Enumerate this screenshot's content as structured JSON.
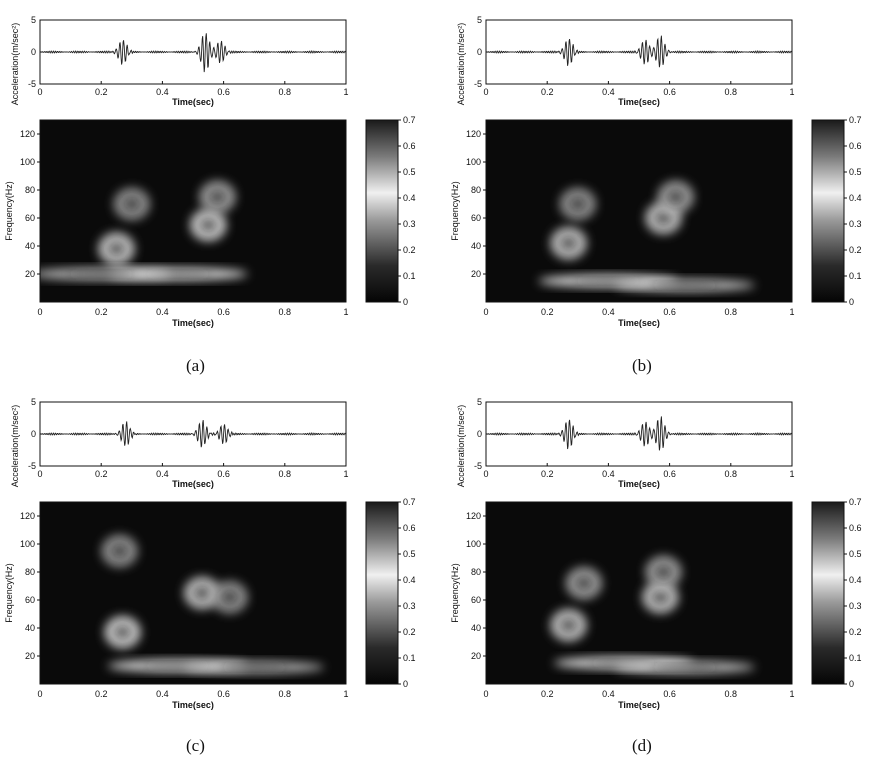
{
  "chart_data": [
    {
      "panel": "(a)",
      "type": "heatmap",
      "top": {
        "type": "line",
        "xlabel": "Time(sec)",
        "ylabel": "Acceleration(m/sec²)",
        "xlim": [
          0,
          1
        ],
        "ylim": [
          -5,
          5
        ],
        "xticks": [
          "0",
          "0.2",
          "0.4",
          "0.6",
          "0.8",
          "1"
        ],
        "yticks": [
          "-5",
          "0",
          "5"
        ],
        "bursts": [
          {
            "t": 0.27,
            "amp": 2.0
          },
          {
            "t": 0.54,
            "amp": 3.2
          },
          {
            "t": 0.59,
            "amp": 1.8
          }
        ]
      },
      "main": {
        "xlabel": "Time(sec)",
        "ylabel": "Frequency(Hz)",
        "xlim": [
          0,
          1
        ],
        "ylim": [
          0,
          130
        ],
        "xticks": [
          "0",
          "0.2",
          "0.4",
          "0.6",
          "0.8",
          "1"
        ],
        "yticks": [
          "20",
          "40",
          "60",
          "80",
          "100",
          "120"
        ],
        "blobs": [
          {
            "t": 0.25,
            "f": 38,
            "level": 0.62
          },
          {
            "t": 0.3,
            "f": 70,
            "level": 0.4
          },
          {
            "t": 0.55,
            "f": 55,
            "level": 0.65
          },
          {
            "t": 0.58,
            "f": 75,
            "level": 0.45
          },
          {
            "t": 0.45,
            "f": 20,
            "level": 0.7
          },
          {
            "t": 0.2,
            "f": 20,
            "level": 0.55
          }
        ]
      },
      "colorbar": {
        "range": [
          0,
          0.7
        ],
        "ticks": [
          "0",
          "0.1",
          "0.2",
          "0.3",
          "0.4",
          "0.5",
          "0.6",
          "0.7"
        ]
      }
    },
    {
      "panel": "(b)",
      "type": "heatmap",
      "top": {
        "type": "line",
        "xlabel": "Time(sec)",
        "ylabel": "Acceleration(m/sec²)",
        "xlim": [
          0,
          1
        ],
        "ylim": [
          -5,
          5
        ],
        "xticks": [
          "0",
          "0.2",
          "0.4",
          "0.6",
          "0.8",
          "1"
        ],
        "yticks": [
          "-5",
          "0",
          "5"
        ],
        "bursts": [
          {
            "t": 0.27,
            "amp": 2.2
          },
          {
            "t": 0.52,
            "amp": 2.0
          },
          {
            "t": 0.57,
            "amp": 2.6
          }
        ]
      },
      "main": {
        "xlabel": "Time(sec)",
        "ylabel": "Frequency(Hz)",
        "xlim": [
          0,
          1
        ],
        "ylim": [
          0,
          130
        ],
        "xticks": [
          "0",
          "0.2",
          "0.4",
          "0.6",
          "0.8",
          "1"
        ],
        "yticks": [
          "20",
          "40",
          "60",
          "80",
          "100",
          "120"
        ],
        "blobs": [
          {
            "t": 0.27,
            "f": 42,
            "level": 0.6
          },
          {
            "t": 0.3,
            "f": 70,
            "level": 0.4
          },
          {
            "t": 0.58,
            "f": 60,
            "level": 0.6
          },
          {
            "t": 0.62,
            "f": 75,
            "level": 0.45
          },
          {
            "t": 0.4,
            "f": 15,
            "level": 0.7
          },
          {
            "t": 0.65,
            "f": 12,
            "level": 0.55
          }
        ]
      },
      "colorbar": {
        "range": [
          0,
          0.7
        ],
        "ticks": [
          "0",
          "0.1",
          "0.2",
          "0.3",
          "0.4",
          "0.5",
          "0.6",
          "0.7"
        ]
      }
    },
    {
      "panel": "(c)",
      "type": "heatmap",
      "top": {
        "type": "line",
        "xlabel": "Time(sec)",
        "ylabel": "Acceleration(m/sec²)",
        "xlim": [
          0,
          1
        ],
        "ylim": [
          -5,
          5
        ],
        "xticks": [
          "0",
          "0.2",
          "0.4",
          "0.6",
          "0.8",
          "1"
        ],
        "yticks": [
          "-5",
          "0",
          "5"
        ],
        "bursts": [
          {
            "t": 0.28,
            "amp": 2.0
          },
          {
            "t": 0.53,
            "amp": 2.2
          },
          {
            "t": 0.6,
            "amp": 1.6
          }
        ]
      },
      "main": {
        "xlabel": "Time(sec)",
        "ylabel": "Frequency(Hz)",
        "xlim": [
          0,
          1
        ],
        "ylim": [
          0,
          130
        ],
        "xticks": [
          "0",
          "0.2",
          "0.4",
          "0.6",
          "0.8",
          "1"
        ],
        "yticks": [
          "20",
          "40",
          "60",
          "80",
          "100",
          "120"
        ],
        "blobs": [
          {
            "t": 0.27,
            "f": 37,
            "level": 0.65
          },
          {
            "t": 0.26,
            "f": 95,
            "level": 0.4
          },
          {
            "t": 0.53,
            "f": 65,
            "level": 0.6
          },
          {
            "t": 0.62,
            "f": 62,
            "level": 0.4
          },
          {
            "t": 0.45,
            "f": 13,
            "level": 0.7
          },
          {
            "t": 0.7,
            "f": 12,
            "level": 0.5
          }
        ]
      },
      "colorbar": {
        "range": [
          0,
          0.7
        ],
        "ticks": [
          "0",
          "0.1",
          "0.2",
          "0.3",
          "0.4",
          "0.5",
          "0.6",
          "0.7"
        ]
      }
    },
    {
      "panel": "(d)",
      "type": "heatmap",
      "top": {
        "type": "line",
        "xlabel": "Time(sec)",
        "ylabel": "Acceleration(m/sec²)",
        "xlim": [
          0,
          1
        ],
        "ylim": [
          -5,
          5
        ],
        "xticks": [
          "0",
          "0.2",
          "0.4",
          "0.6",
          "0.8",
          "1"
        ],
        "yticks": [
          "-5",
          "0",
          "5"
        ],
        "bursts": [
          {
            "t": 0.27,
            "amp": 2.4
          },
          {
            "t": 0.52,
            "amp": 2.0
          },
          {
            "t": 0.57,
            "amp": 2.8
          }
        ]
      },
      "main": {
        "xlabel": "Time(sec)",
        "ylabel": "Frequency(Hz)",
        "xlim": [
          0,
          1
        ],
        "ylim": [
          0,
          130
        ],
        "xticks": [
          "0",
          "0.2",
          "0.4",
          "0.6",
          "0.8",
          "1"
        ],
        "yticks": [
          "20",
          "40",
          "60",
          "80",
          "100",
          "120"
        ],
        "blobs": [
          {
            "t": 0.27,
            "f": 42,
            "level": 0.6
          },
          {
            "t": 0.32,
            "f": 72,
            "level": 0.45
          },
          {
            "t": 0.57,
            "f": 62,
            "level": 0.6
          },
          {
            "t": 0.58,
            "f": 80,
            "level": 0.45
          },
          {
            "t": 0.45,
            "f": 15,
            "level": 0.7
          },
          {
            "t": 0.65,
            "f": 12,
            "level": 0.55
          }
        ]
      },
      "colorbar": {
        "range": [
          0,
          0.7
        ],
        "ticks": [
          "0",
          "0.1",
          "0.2",
          "0.3",
          "0.4",
          "0.5",
          "0.6",
          "0.7"
        ]
      }
    }
  ]
}
